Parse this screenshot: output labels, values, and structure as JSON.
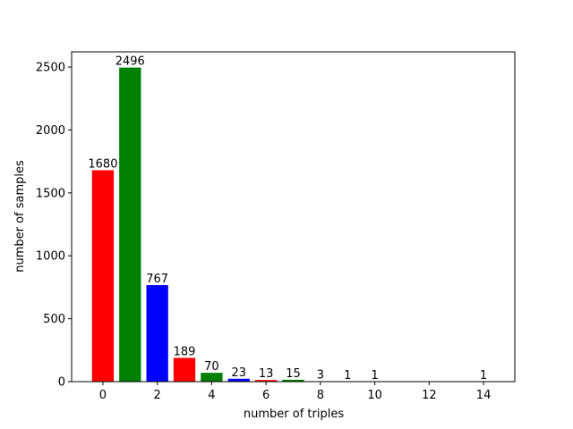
{
  "chart_data": {
    "type": "bar",
    "x": [
      0,
      1,
      2,
      3,
      4,
      5,
      6,
      7,
      8,
      9,
      10,
      14
    ],
    "values": [
      1680,
      2496,
      767,
      189,
      70,
      23,
      13,
      15,
      3,
      1,
      1,
      1
    ],
    "colors": [
      "red",
      "green",
      "blue",
      "red",
      "green",
      "blue",
      "red",
      "green",
      "blue",
      "red",
      "green",
      "blue"
    ],
    "bar_width": 0.8,
    "xlabel": "number of triples",
    "ylabel": "number of samples",
    "xlim": [
      -1.15,
      15.15
    ],
    "ylim": [
      0,
      2621
    ],
    "xticks": [
      0,
      2,
      4,
      6,
      8,
      10,
      12,
      14
    ],
    "yticks": [
      0,
      500,
      1000,
      1500,
      2000,
      2500
    ]
  }
}
